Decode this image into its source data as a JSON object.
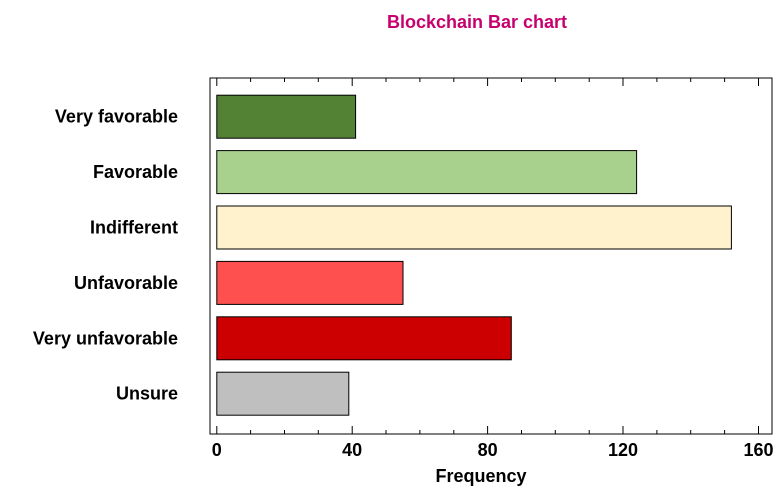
{
  "chart_data": {
    "type": "bar",
    "orientation": "horizontal",
    "title": "Blockchain Bar chart",
    "xlabel": "Frequency",
    "ylabel": "",
    "categories": [
      "Very favorable",
      "Favorable",
      "Indifferent",
      "Unfavorable",
      "Very unfavorable",
      "Unsure"
    ],
    "values": [
      41,
      124,
      152,
      55,
      87,
      39
    ],
    "colors": [
      "#548235",
      "#a9d18e",
      "#fff2cc",
      "#ff5050",
      "#cc0000",
      "#bfbfbf"
    ],
    "xlim": [
      -2,
      164
    ],
    "xticks": [
      0,
      40,
      80,
      120,
      160
    ],
    "grid": false,
    "legend": "none"
  }
}
